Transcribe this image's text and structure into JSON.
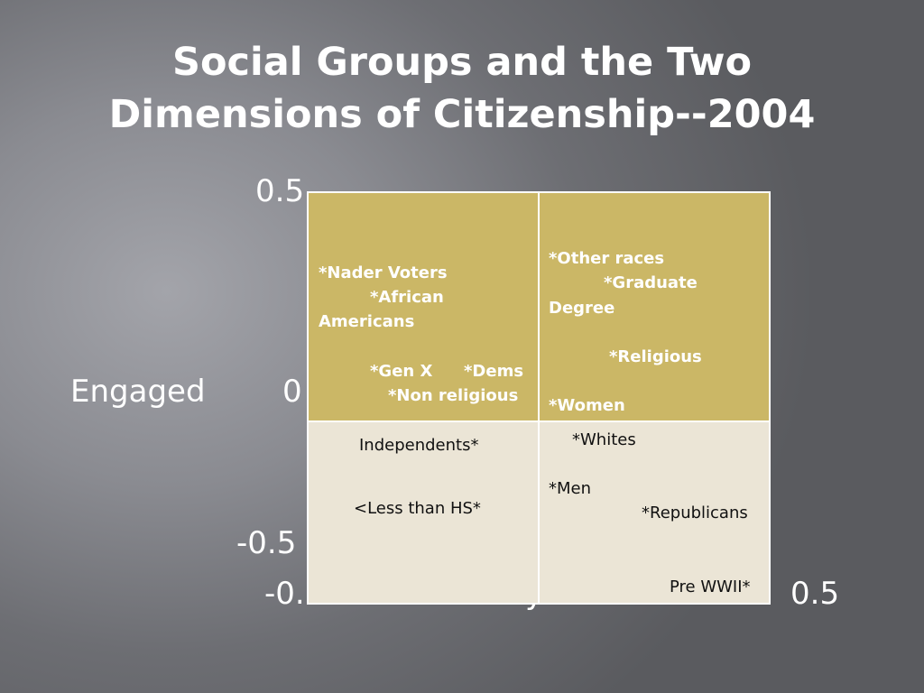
{
  "slide": {
    "title_line1": "Social Groups and the Two",
    "title_line2": "Dimensions of Citizenship--2004"
  },
  "axes": {
    "y_top_tick": "0.5",
    "y_mid_tick": "0",
    "y_bottom_tick": "-0.5",
    "y_label": "Engaged",
    "x_left_tick_partial": "-0.",
    "x_right_tick": "0.5",
    "x_label_partial": "y"
  },
  "quadrants": {
    "top_left": [
      "*Nader Voters",
      "*African",
      "Americans",
      "*Gen X",
      "*Dems",
      "*Non religious"
    ],
    "top_right": [
      "*Other races",
      "*Graduate",
      "Degree",
      "*Religious",
      "*Women"
    ],
    "bottom_left": [
      "Independents*",
      "<Less than HS*"
    ],
    "bottom_right": [
      "*Whites",
      "*Men",
      "*Republicans",
      "Pre WWII*"
    ]
  },
  "colors": {
    "upper_quadrant_fill": "#cbb766",
    "lower_quadrant_fill": "#ebe5d6",
    "gridline": "#ffffff",
    "text_light": "#ffffff",
    "text_dark": "#111111"
  }
}
